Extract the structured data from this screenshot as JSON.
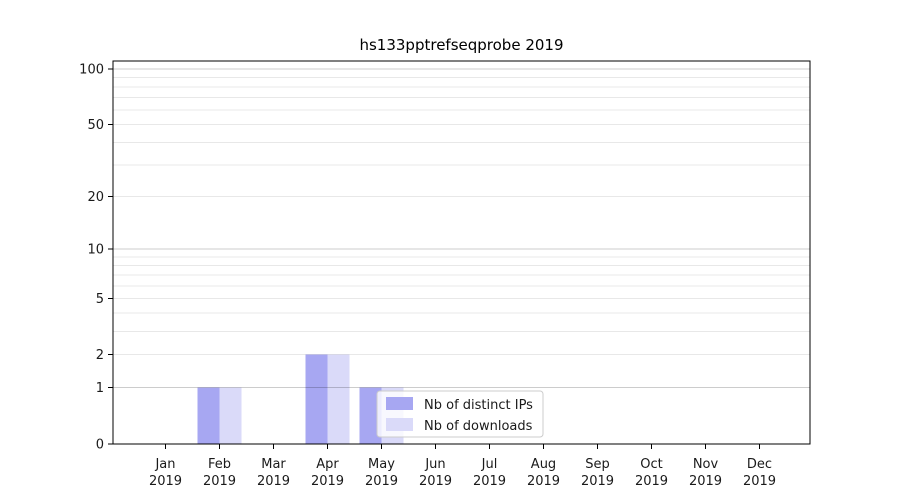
{
  "figure": {
    "title": "hs133pptrefseqprobe 2019"
  },
  "chart_data": {
    "type": "bar",
    "title": "hs133pptrefseqprobe 2019",
    "categories": [
      "Jan",
      "Feb",
      "Mar",
      "Apr",
      "May",
      "Jun",
      "Jul",
      "Aug",
      "Sep",
      "Oct",
      "Nov",
      "Dec"
    ],
    "category_year": "2019",
    "series": [
      {
        "name": "Nb of distinct IPs",
        "color": "#a7a7f2",
        "values": [
          0,
          1,
          0,
          2,
          1,
          0,
          0,
          0,
          0,
          0,
          0,
          0
        ]
      },
      {
        "name": "Nb of downloads",
        "color": "#dadaf9",
        "values": [
          0,
          1,
          0,
          2,
          1,
          0,
          0,
          0,
          0,
          0,
          0,
          0
        ]
      }
    ],
    "y_scale": "log1p",
    "ylim": [
      0,
      112
    ],
    "y_tick_values": [
      0,
      1,
      2,
      5,
      10,
      20,
      50,
      100
    ],
    "y_minor_gridlines": [
      1,
      2,
      3,
      4,
      5,
      6,
      7,
      8,
      9,
      10,
      20,
      30,
      40,
      50,
      60,
      70,
      80,
      90,
      100
    ],
    "y_major_gridlines": [
      1,
      10,
      100
    ],
    "grid": true,
    "legend": {
      "position": "lower right",
      "labels": [
        "Nb of distinct IPs",
        "Nb of downloads"
      ]
    },
    "colors": {
      "spine": "#000000",
      "grid_minor": "rgba(0,0,0,0.09)",
      "grid_major": "rgba(0,0,0,0.20)",
      "legend_border": "#cccccc",
      "legend_bg": "#ffffff"
    }
  }
}
